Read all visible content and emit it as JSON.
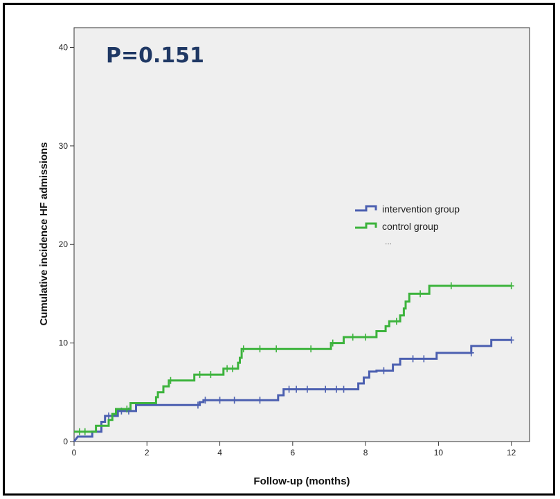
{
  "annotation": {
    "text": "P=0.151",
    "color": "#1f3864"
  },
  "colors": {
    "intervention": "#4b5fb0",
    "control": "#3cb33c",
    "plot_bg": "#efefef",
    "axis": "#333333"
  },
  "chart_data": {
    "type": "line",
    "step": true,
    "xlabel": "Follow-up (months)",
    "ylabel": "Cumulative incidence HF admissions",
    "xlim": [
      0,
      12.5
    ],
    "ylim": [
      0,
      42
    ],
    "x_ticks": [
      0,
      2,
      4,
      6,
      8,
      10,
      12
    ],
    "y_ticks": [
      0,
      10,
      20,
      30,
      40
    ],
    "grid": false,
    "legend": {
      "position": "right-middle",
      "extra": "..."
    },
    "series": [
      {
        "name": "intervention group",
        "color_key": "intervention",
        "points": [
          [
            0,
            0
          ],
          [
            0.1,
            0.5
          ],
          [
            0.5,
            0.5
          ],
          [
            0.5,
            1.0
          ],
          [
            0.75,
            1.0
          ],
          [
            0.75,
            2.0
          ],
          [
            0.85,
            2.0
          ],
          [
            0.85,
            2.6
          ],
          [
            1.2,
            2.6
          ],
          [
            1.2,
            3.1
          ],
          [
            1.7,
            3.1
          ],
          [
            1.7,
            3.7
          ],
          [
            3.45,
            3.7
          ],
          [
            3.45,
            4.0
          ],
          [
            3.55,
            4.0
          ],
          [
            3.55,
            4.2
          ],
          [
            5.6,
            4.2
          ],
          [
            5.6,
            4.7
          ],
          [
            5.75,
            4.7
          ],
          [
            5.75,
            5.3
          ],
          [
            7.8,
            5.3
          ],
          [
            7.8,
            5.9
          ],
          [
            7.95,
            5.9
          ],
          [
            7.95,
            6.5
          ],
          [
            8.1,
            6.5
          ],
          [
            8.1,
            7.1
          ],
          [
            8.3,
            7.1
          ],
          [
            8.3,
            7.2
          ],
          [
            8.75,
            7.2
          ],
          [
            8.75,
            7.8
          ],
          [
            8.95,
            7.8
          ],
          [
            8.95,
            8.4
          ],
          [
            9.95,
            8.4
          ],
          [
            9.95,
            9.0
          ],
          [
            10.9,
            9.0
          ],
          [
            10.9,
            9.7
          ],
          [
            11.45,
            9.7
          ],
          [
            11.45,
            10.3
          ],
          [
            12,
            10.3
          ]
        ],
        "censor": [
          [
            0.95,
            2.6
          ],
          [
            1.3,
            3.1
          ],
          [
            1.5,
            3.1
          ],
          [
            3.4,
            3.7
          ],
          [
            3.6,
            4.2
          ],
          [
            4.0,
            4.2
          ],
          [
            4.4,
            4.2
          ],
          [
            5.1,
            4.2
          ],
          [
            5.9,
            5.3
          ],
          [
            6.1,
            5.3
          ],
          [
            6.4,
            5.3
          ],
          [
            6.9,
            5.3
          ],
          [
            7.2,
            5.3
          ],
          [
            7.4,
            5.3
          ],
          [
            8.5,
            7.2
          ],
          [
            9.3,
            8.4
          ],
          [
            9.6,
            8.4
          ],
          [
            10.9,
            9.0
          ],
          [
            12,
            10.3
          ]
        ]
      },
      {
        "name": "control group",
        "color_key": "control",
        "points": [
          [
            0,
            1.0
          ],
          [
            0.6,
            1.0
          ],
          [
            0.6,
            1.6
          ],
          [
            0.95,
            1.6
          ],
          [
            0.95,
            2.2
          ],
          [
            1.05,
            2.2
          ],
          [
            1.05,
            2.8
          ],
          [
            1.15,
            2.8
          ],
          [
            1.15,
            3.3
          ],
          [
            1.55,
            3.3
          ],
          [
            1.55,
            3.9
          ],
          [
            2.25,
            3.9
          ],
          [
            2.25,
            4.5
          ],
          [
            2.3,
            4.5
          ],
          [
            2.3,
            5.0
          ],
          [
            2.45,
            5.0
          ],
          [
            2.45,
            5.6
          ],
          [
            2.6,
            5.6
          ],
          [
            2.6,
            6.2
          ],
          [
            3.3,
            6.2
          ],
          [
            3.3,
            6.8
          ],
          [
            4.1,
            6.8
          ],
          [
            4.1,
            7.4
          ],
          [
            4.5,
            7.4
          ],
          [
            4.5,
            8.0
          ],
          [
            4.55,
            8.0
          ],
          [
            4.55,
            8.5
          ],
          [
            4.6,
            8.5
          ],
          [
            4.6,
            9.4
          ],
          [
            7.05,
            9.4
          ],
          [
            7.05,
            10.0
          ],
          [
            7.4,
            10.0
          ],
          [
            7.4,
            10.6
          ],
          [
            8.3,
            10.6
          ],
          [
            8.3,
            11.2
          ],
          [
            8.55,
            11.2
          ],
          [
            8.55,
            11.7
          ],
          [
            8.65,
            11.7
          ],
          [
            8.65,
            12.2
          ],
          [
            8.95,
            12.2
          ],
          [
            8.95,
            12.8
          ],
          [
            9.05,
            12.8
          ],
          [
            9.05,
            13.5
          ],
          [
            9.1,
            13.5
          ],
          [
            9.1,
            14.2
          ],
          [
            9.2,
            14.2
          ],
          [
            9.2,
            15.0
          ],
          [
            9.75,
            15.0
          ],
          [
            9.75,
            15.8
          ],
          [
            12,
            15.8
          ]
        ],
        "censor": [
          [
            0.15,
            1.0
          ],
          [
            0.3,
            1.0
          ],
          [
            1.45,
            3.3
          ],
          [
            2.65,
            6.2
          ],
          [
            3.45,
            6.8
          ],
          [
            3.75,
            6.8
          ],
          [
            4.2,
            7.4
          ],
          [
            4.35,
            7.4
          ],
          [
            4.65,
            9.4
          ],
          [
            5.1,
            9.4
          ],
          [
            5.55,
            9.4
          ],
          [
            6.5,
            9.4
          ],
          [
            7.1,
            10.0
          ],
          [
            7.65,
            10.6
          ],
          [
            8.0,
            10.6
          ],
          [
            8.85,
            12.2
          ],
          [
            9.5,
            15.0
          ],
          [
            10.35,
            15.8
          ],
          [
            12,
            15.8
          ]
        ]
      }
    ]
  }
}
